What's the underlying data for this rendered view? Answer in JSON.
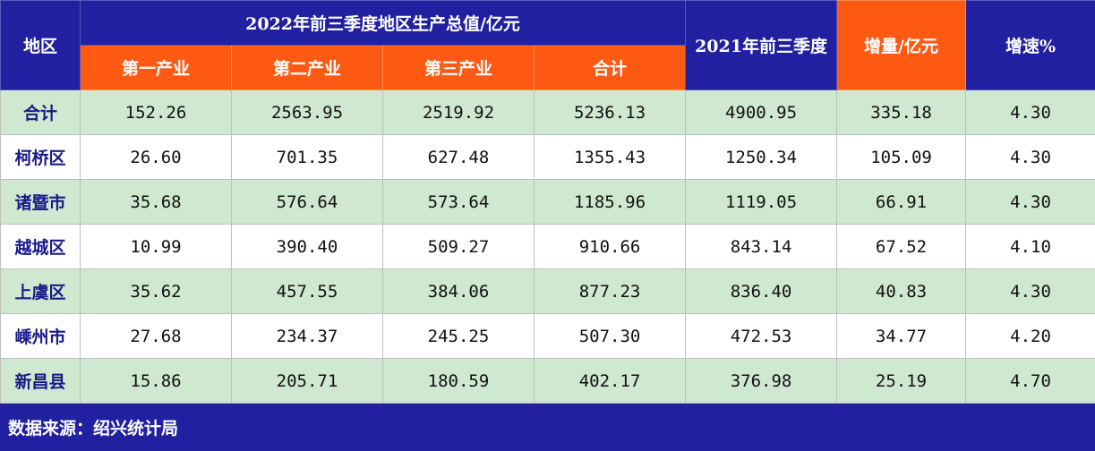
{
  "header": {
    "region": "地区",
    "group_title": "2022年前三季度地区生产总值/亿元",
    "primary": "第一产业",
    "secondary": "第二产业",
    "tertiary": "第三产业",
    "total": "合计",
    "prev": "2021年前三季度",
    "increment": "增量/亿元",
    "growth": "增速%"
  },
  "rows": [
    {
      "region": "合计",
      "primary": "152.26",
      "secondary": "2563.95",
      "tertiary": "2519.92",
      "total": "5236.13",
      "prev": "4900.95",
      "increment": "335.18",
      "growth": "4.30"
    },
    {
      "region": "柯桥区",
      "primary": "26.60",
      "secondary": "701.35",
      "tertiary": "627.48",
      "total": "1355.43",
      "prev": "1250.34",
      "increment": "105.09",
      "growth": "4.30"
    },
    {
      "region": "诸暨市",
      "primary": "35.68",
      "secondary": "576.64",
      "tertiary": "573.64",
      "total": "1185.96",
      "prev": "1119.05",
      "increment": "66.91",
      "growth": "4.30"
    },
    {
      "region": "越城区",
      "primary": "10.99",
      "secondary": "390.40",
      "tertiary": "509.27",
      "total": "910.66",
      "prev": "843.14",
      "increment": "67.52",
      "growth": "4.10"
    },
    {
      "region": "上虞区",
      "primary": "35.62",
      "secondary": "457.55",
      "tertiary": "384.06",
      "total": "877.23",
      "prev": "836.40",
      "increment": "40.83",
      "growth": "4.30"
    },
    {
      "region": "嵊州市",
      "primary": "27.68",
      "secondary": "234.37",
      "tertiary": "245.25",
      "total": "507.30",
      "prev": "472.53",
      "increment": "34.77",
      "growth": "4.20"
    },
    {
      "region": "新昌县",
      "primary": "15.86",
      "secondary": "205.71",
      "tertiary": "180.59",
      "total": "402.17",
      "prev": "376.98",
      "increment": "25.19",
      "growth": "4.70"
    }
  ],
  "footer": "数据来源：绍兴统计局",
  "colors": {
    "header_blue": "#2020a0",
    "header_orange": "#ff5a14",
    "row_green": "#cfe8d0",
    "region_text": "#1a1a8a"
  }
}
